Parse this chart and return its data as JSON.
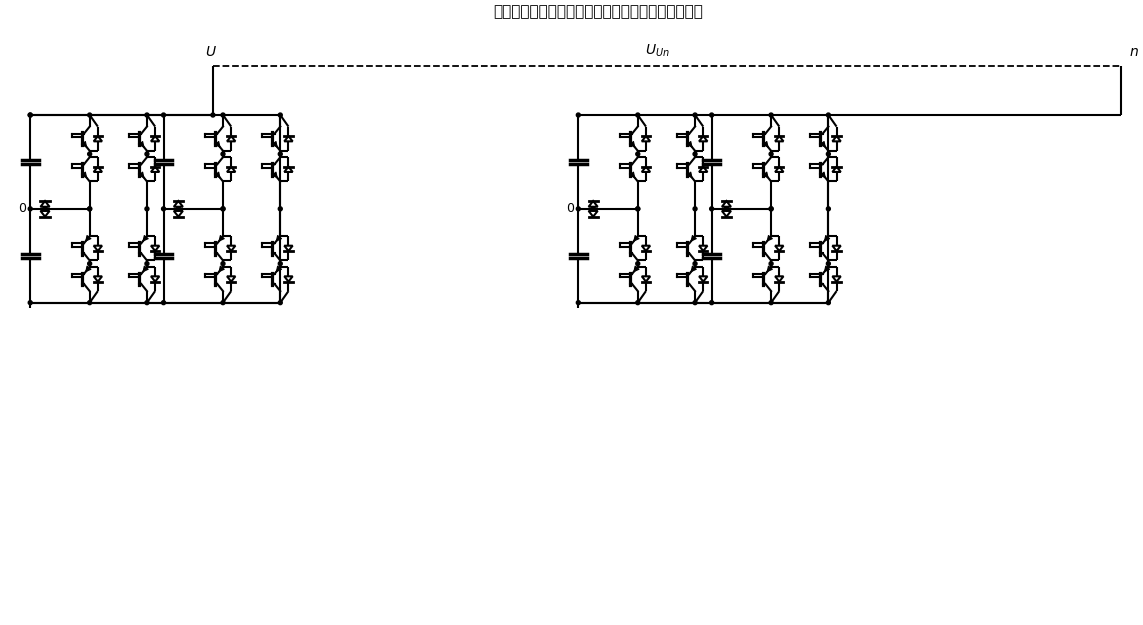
{
  "title": "基于中性点钳位式的级联多电平逆变器单相拓扑结构",
  "bg_color": "#ffffff",
  "lw": 1.5,
  "fig_w": 11.43,
  "fig_h": 6.25,
  "dpi": 100
}
